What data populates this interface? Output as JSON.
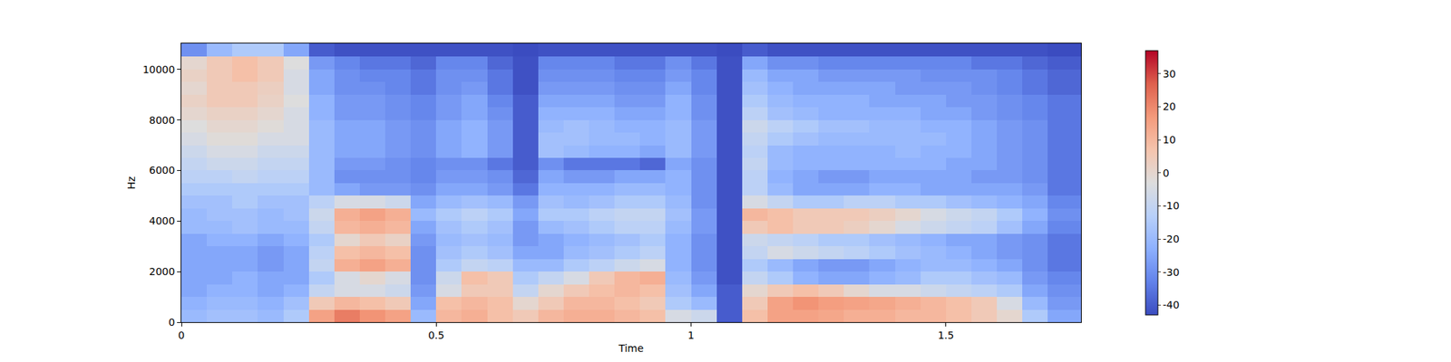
{
  "chart_data": {
    "type": "heatmap",
    "xlabel": "Time",
    "ylabel": "Hz",
    "xbins": [
      0,
      0.05,
      0.1,
      0.15,
      0.2,
      0.25,
      0.3,
      0.35,
      0.4,
      0.45,
      0.5,
      0.55,
      0.6,
      0.65,
      0.7,
      0.75,
      0.8,
      0.85,
      0.9,
      0.95,
      1.0,
      1.05,
      1.1,
      1.15,
      1.2,
      1.25,
      1.3,
      1.35,
      1.4,
      1.45,
      1.5,
      1.55,
      1.6,
      1.65,
      1.7,
      1.765
    ],
    "ybins": [
      0,
      500,
      1000,
      1500,
      2000,
      2500,
      3000,
      3500,
      4000,
      4500,
      5000,
      5500,
      6000,
      6500,
      7000,
      7500,
      8000,
      8500,
      9000,
      9500,
      10000,
      10500,
      11025
    ],
    "xlim": [
      0,
      1.765
    ],
    "xticks": [
      0,
      0.5,
      1,
      1.5
    ],
    "ylim": [
      0,
      11025
    ],
    "yticks": [
      0,
      2000,
      4000,
      6000,
      8000,
      10000
    ],
    "cells": [
      [
        -20,
        -18,
        -18,
        -20,
        -15,
        15,
        22,
        18,
        15,
        -20,
        10,
        12,
        8,
        5,
        10,
        12,
        12,
        10,
        8,
        -5,
        -8,
        -40,
        8,
        15,
        15,
        14,
        12,
        12,
        10,
        10,
        8,
        5,
        0,
        -15,
        -25
      ],
      [
        -22,
        -20,
        -20,
        -22,
        -18,
        5,
        10,
        8,
        5,
        -25,
        8,
        10,
        8,
        0,
        5,
        10,
        10,
        8,
        5,
        -15,
        -20,
        -40,
        5,
        15,
        18,
        16,
        15,
        14,
        12,
        10,
        8,
        5,
        -5,
        -20,
        -28
      ],
      [
        -25,
        -22,
        -22,
        -25,
        -22,
        -10,
        -5,
        -5,
        -8,
        -28,
        -5,
        5,
        5,
        -10,
        0,
        5,
        8,
        10,
        8,
        -18,
        -25,
        -40,
        0,
        5,
        8,
        5,
        0,
        -5,
        -5,
        -8,
        -10,
        -12,
        -15,
        -25,
        -30
      ],
      [
        -25,
        -25,
        -22,
        -25,
        -25,
        -15,
        -5,
        0,
        -5,
        -30,
        -8,
        8,
        5,
        -15,
        -10,
        -5,
        5,
        10,
        12,
        -20,
        -28,
        -42,
        -10,
        -15,
        -22,
        -25,
        -25,
        -22,
        -20,
        -15,
        -15,
        -18,
        -20,
        -28,
        -32
      ],
      [
        -25,
        -25,
        -25,
        -28,
        -25,
        -10,
        12,
        15,
        12,
        -30,
        -15,
        -10,
        -12,
        -20,
        -20,
        -15,
        -12,
        -8,
        -5,
        -22,
        -30,
        -42,
        -15,
        -20,
        -25,
        -28,
        -28,
        -25,
        -22,
        -20,
        -20,
        -22,
        -25,
        -30,
        -35
      ],
      [
        -25,
        -25,
        -25,
        -28,
        -25,
        -12,
        8,
        10,
        8,
        -30,
        -18,
        -15,
        -18,
        -25,
        -25,
        -20,
        -18,
        -15,
        -12,
        -22,
        -30,
        -42,
        -10,
        -5,
        -8,
        -10,
        -12,
        -15,
        -18,
        -20,
        -22,
        -25,
        -28,
        -30,
        -35
      ],
      [
        -25,
        -22,
        -22,
        -25,
        -22,
        -15,
        0,
        5,
        2,
        -28,
        -20,
        -18,
        -20,
        -28,
        -25,
        -22,
        -20,
        -18,
        -15,
        -22,
        -30,
        -42,
        -8,
        -10,
        -12,
        -15,
        -15,
        -18,
        -20,
        -22,
        -25,
        -25,
        -28,
        -30,
        -35
      ],
      [
        -20,
        -20,
        -18,
        -20,
        -20,
        -10,
        10,
        12,
        10,
        -25,
        -18,
        -15,
        -18,
        -28,
        -20,
        -18,
        -15,
        -12,
        -12,
        -20,
        -28,
        -42,
        5,
        8,
        5,
        5,
        3,
        0,
        -5,
        -8,
        -10,
        -12,
        -18,
        -25,
        -32
      ],
      [
        -20,
        -18,
        -18,
        -20,
        -18,
        -8,
        12,
        15,
        12,
        -20,
        -15,
        -12,
        -15,
        -25,
        -15,
        -15,
        -12,
        -10,
        -10,
        -18,
        -28,
        -42,
        10,
        8,
        5,
        5,
        5,
        3,
        0,
        -5,
        -8,
        -10,
        -15,
        -22,
        -30
      ],
      [
        -18,
        -18,
        -15,
        -18,
        -18,
        -12,
        -5,
        -5,
        -8,
        -25,
        -20,
        -18,
        -20,
        -28,
        -18,
        -20,
        -18,
        -15,
        -15,
        -20,
        -30,
        -42,
        -5,
        -10,
        -15,
        -15,
        -12,
        -12,
        -15,
        -15,
        -18,
        -20,
        -22,
        -25,
        -32
      ],
      [
        -15,
        -15,
        -15,
        -15,
        -15,
        -20,
        -25,
        -28,
        -28,
        -30,
        -25,
        -25,
        -28,
        -35,
        -22,
        -22,
        -22,
        -20,
        -20,
        -22,
        -30,
        -42,
        -12,
        -20,
        -25,
        -25,
        -25,
        -22,
        -22,
        -25,
        -25,
        -25,
        -25,
        -28,
        -35
      ],
      [
        -12,
        -12,
        -10,
        -12,
        -12,
        -20,
        -30,
        -30,
        -30,
        -32,
        -28,
        -28,
        -30,
        -38,
        -25,
        -28,
        -28,
        -25,
        -25,
        -22,
        -30,
        -42,
        -12,
        -22,
        -25,
        -28,
        -28,
        -25,
        -25,
        -25,
        -25,
        -28,
        -28,
        -30,
        -35
      ],
      [
        -10,
        -8,
        -8,
        -10,
        -10,
        -20,
        -28,
        -28,
        -30,
        -32,
        -30,
        -30,
        -35,
        -40,
        -30,
        -35,
        -35,
        -35,
        -38,
        -25,
        -30,
        -42,
        -10,
        -20,
        -22,
        -22,
        -22,
        -22,
        -22,
        -22,
        -25,
        -25,
        -28,
        -30,
        -35
      ],
      [
        -8,
        -5,
        -5,
        -8,
        -8,
        -20,
        -25,
        -25,
        -28,
        -30,
        -25,
        -22,
        -28,
        -40,
        -18,
        -20,
        -22,
        -22,
        -25,
        -20,
        -28,
        -42,
        -12,
        -20,
        -22,
        -22,
        -22,
        -22,
        -20,
        -22,
        -22,
        -25,
        -28,
        -30,
        -35
      ],
      [
        -5,
        -2,
        -2,
        -5,
        -5,
        -20,
        -25,
        -25,
        -28,
        -30,
        -25,
        -22,
        -28,
        -40,
        -18,
        -18,
        -20,
        -20,
        -22,
        -20,
        -28,
        -42,
        -10,
        -15,
        -18,
        -20,
        -20,
        -20,
        -20,
        -20,
        -22,
        -25,
        -28,
        -30,
        -35
      ],
      [
        -3,
        0,
        0,
        -2,
        -5,
        -20,
        -25,
        -25,
        -28,
        -30,
        -25,
        -22,
        -28,
        -40,
        -20,
        -18,
        -20,
        -22,
        -22,
        -20,
        -28,
        -42,
        -8,
        -12,
        -15,
        -18,
        -18,
        -20,
        -20,
        -22,
        -22,
        -25,
        -28,
        -30,
        -35
      ],
      [
        0,
        2,
        2,
        0,
        -5,
        -22,
        -28,
        -28,
        -30,
        -32,
        -28,
        -25,
        -30,
        -40,
        -22,
        -22,
        -22,
        -25,
        -25,
        -22,
        -30,
        -42,
        -12,
        -18,
        -20,
        -22,
        -22,
        -22,
        -22,
        -25,
        -25,
        -28,
        -30,
        -32,
        -35
      ],
      [
        2,
        5,
        5,
        2,
        -3,
        -22,
        -28,
        -28,
        -30,
        -32,
        -28,
        -25,
        -32,
        -40,
        -25,
        -25,
        -25,
        -28,
        -28,
        -22,
        -30,
        -42,
        -15,
        -20,
        -22,
        -22,
        -22,
        -25,
        -25,
        -25,
        -28,
        -28,
        -30,
        -32,
        -35
      ],
      [
        0,
        5,
        5,
        3,
        -5,
        -25,
        -30,
        -30,
        -32,
        -35,
        -30,
        -28,
        -35,
        -42,
        -28,
        -28,
        -28,
        -30,
        -30,
        -25,
        -32,
        -42,
        -18,
        -22,
        -25,
        -25,
        -25,
        -25,
        -28,
        -28,
        -28,
        -30,
        -32,
        -35,
        -38
      ],
      [
        2,
        5,
        8,
        5,
        -5,
        -25,
        -30,
        -32,
        -32,
        -35,
        -30,
        -30,
        -35,
        -42,
        -30,
        -30,
        -30,
        -32,
        -32,
        -28,
        -32,
        -42,
        -20,
        -25,
        -25,
        -28,
        -28,
        -28,
        -28,
        -30,
        -30,
        -30,
        -32,
        -35,
        -38
      ],
      [
        0,
        5,
        8,
        5,
        -3,
        -28,
        -32,
        -35,
        -35,
        -38,
        -32,
        -32,
        -38,
        -42,
        -32,
        -32,
        -32,
        -35,
        -35,
        -30,
        -35,
        -42,
        -25,
        -30,
        -30,
        -32,
        -32,
        -32,
        -32,
        -32,
        -32,
        -35,
        -35,
        -38,
        -40
      ],
      [
        -30,
        -20,
        -15,
        -15,
        -25,
        -40,
        -42,
        -42,
        -42,
        -42,
        -42,
        -42,
        -42,
        -43,
        -42,
        -42,
        -42,
        -42,
        -42,
        -42,
        -42,
        -43,
        -40,
        -42,
        -42,
        -42,
        -42,
        -42,
        -42,
        -42,
        -42,
        -42,
        -42,
        -42,
        -43
      ]
    ],
    "zlim": [
      -43,
      37
    ],
    "colorbar_ticks": [
      -40,
      -30,
      -20,
      -10,
      0,
      10,
      20,
      30
    ]
  }
}
